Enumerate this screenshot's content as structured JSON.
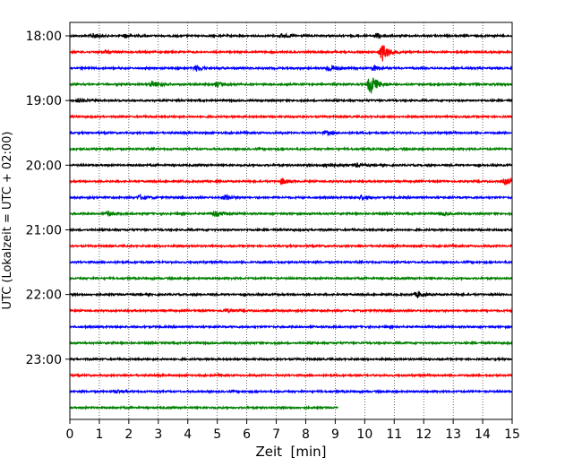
{
  "chart_data": {
    "type": "line",
    "title": "",
    "xlabel": "Zeit  [min]",
    "ylabel": "UTC (Lokalzeit = UTC + 02:00)",
    "xlim": [
      0,
      15
    ],
    "x_ticks": [
      "0",
      "1",
      "2",
      "3",
      "4",
      "5",
      "6",
      "7",
      "8",
      "9",
      "10",
      "11",
      "12",
      "13",
      "14",
      "15"
    ],
    "y_tick_labels": [
      "18:00",
      "19:00",
      "20:00",
      "21:00",
      "22:00",
      "23:00"
    ],
    "y_tick_rows": [
      0,
      4,
      8,
      12,
      16,
      20
    ],
    "grid_x": true,
    "row_interval_min": 15,
    "trace_colors": [
      "#000000",
      "#ff0000",
      "#0000ff",
      "#008000"
    ],
    "traces": [
      {
        "start": "18:00",
        "end_min": 15,
        "events": [
          {
            "t": 0.8,
            "amp": 0.35
          },
          {
            "t": 1.9,
            "amp": 0.3
          },
          {
            "t": 7.2,
            "amp": 0.3
          },
          {
            "t": 10.4,
            "amp": 0.4
          }
        ]
      },
      {
        "start": "18:15",
        "end_min": 15,
        "events": [
          {
            "t": 1.2,
            "amp": 0.25
          },
          {
            "t": 10.6,
            "amp": 1.4
          }
        ]
      },
      {
        "start": "18:30",
        "end_min": 15,
        "events": [
          {
            "t": 4.3,
            "amp": 0.45
          },
          {
            "t": 8.8,
            "amp": 0.6
          },
          {
            "t": 10.3,
            "amp": 0.45
          }
        ]
      },
      {
        "start": "18:45",
        "end_min": 15,
        "events": [
          {
            "t": 2.8,
            "amp": 0.5
          },
          {
            "t": 5.0,
            "amp": 0.4
          },
          {
            "t": 10.2,
            "amp": 1.6
          }
        ]
      },
      {
        "start": "19:00",
        "end_min": 15,
        "events": [
          {
            "t": 0.3,
            "amp": 0.3
          }
        ]
      },
      {
        "start": "19:15",
        "end_min": 15,
        "events": []
      },
      {
        "start": "19:30",
        "end_min": 15,
        "events": [
          {
            "t": 8.7,
            "amp": 0.3
          }
        ]
      },
      {
        "start": "19:45",
        "end_min": 15,
        "events": []
      },
      {
        "start": "20:00",
        "end_min": 15,
        "events": [
          {
            "t": 8.7,
            "amp": 0.35
          },
          {
            "t": 9.7,
            "amp": 0.25
          }
        ]
      },
      {
        "start": "20:15",
        "end_min": 15,
        "events": [
          {
            "t": 7.2,
            "amp": 0.45
          },
          {
            "t": 14.8,
            "amp": 0.5
          }
        ]
      },
      {
        "start": "20:30",
        "end_min": 15,
        "events": [
          {
            "t": 2.4,
            "amp": 0.35
          },
          {
            "t": 5.3,
            "amp": 0.4
          },
          {
            "t": 9.9,
            "amp": 0.35
          }
        ]
      },
      {
        "start": "20:45",
        "end_min": 15,
        "events": [
          {
            "t": 1.3,
            "amp": 0.3
          },
          {
            "t": 4.9,
            "amp": 0.45
          },
          {
            "t": 12.6,
            "amp": 0.3
          }
        ]
      },
      {
        "start": "21:00",
        "end_min": 15,
        "events": []
      },
      {
        "start": "21:15",
        "end_min": 15,
        "events": []
      },
      {
        "start": "21:30",
        "end_min": 15,
        "events": []
      },
      {
        "start": "21:45",
        "end_min": 15,
        "events": []
      },
      {
        "start": "22:00",
        "end_min": 15,
        "events": [
          {
            "t": 11.8,
            "amp": 0.45
          }
        ]
      },
      {
        "start": "22:15",
        "end_min": 15,
        "events": [
          {
            "t": 5.3,
            "amp": 0.25
          }
        ]
      },
      {
        "start": "22:30",
        "end_min": 15,
        "events": []
      },
      {
        "start": "22:45",
        "end_min": 15,
        "events": []
      },
      {
        "start": "23:00",
        "end_min": 15,
        "events": []
      },
      {
        "start": "23:15",
        "end_min": 15,
        "events": []
      },
      {
        "start": "23:30",
        "end_min": 15,
        "events": [
          {
            "t": 1.6,
            "amp": 0.25
          }
        ]
      },
      {
        "start": "23:45",
        "end_min": 9.1,
        "events": []
      }
    ]
  }
}
